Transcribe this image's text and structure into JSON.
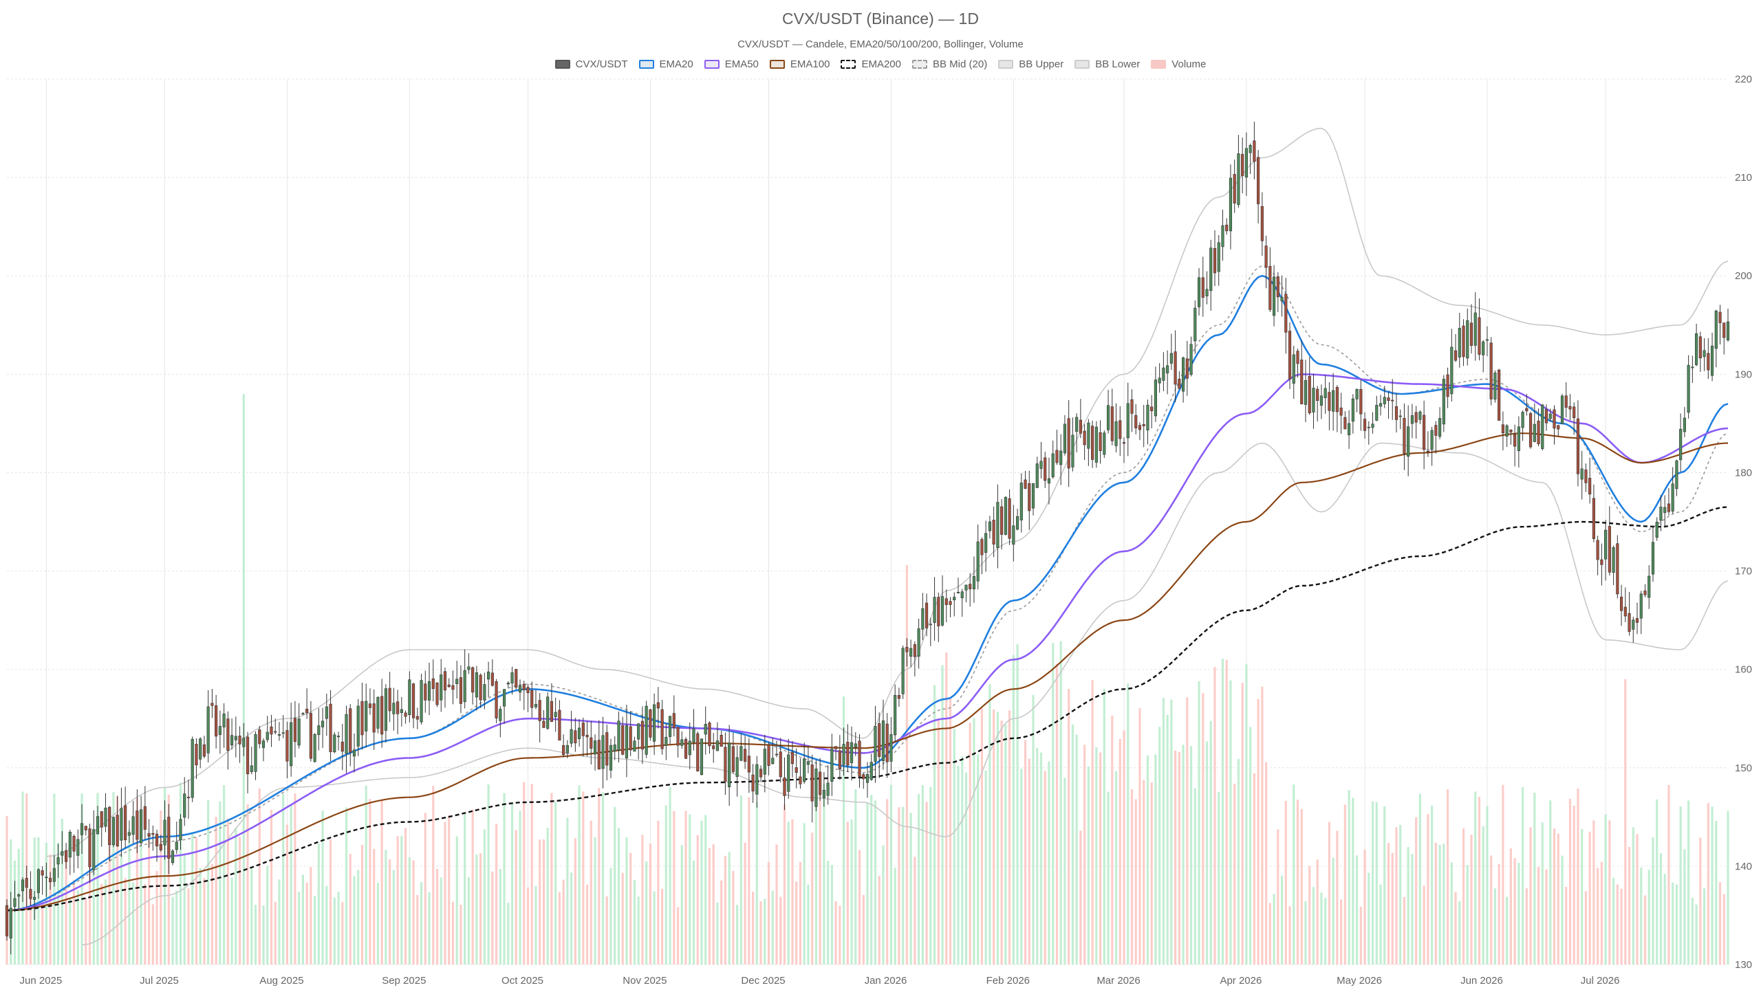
{
  "title": "CVX/USDT (Binance) — 1D",
  "subtitle": "CVX/USDT — Candele, EMA20/50/100/200, Bollinger, Volume",
  "legend": [
    {
      "label": "CVX/USDT",
      "fill": "#666666",
      "stroke": "#555555",
      "dash": false
    },
    {
      "label": "EMA20",
      "fill": "#dfe7ef",
      "stroke": "#1f7fe0",
      "dash": false
    },
    {
      "label": "EMA50",
      "fill": "#ece8f5",
      "stroke": "#8b5cf6",
      "dash": false
    },
    {
      "label": "EMA100",
      "fill": "#ede6df",
      "stroke": "#8b4513",
      "dash": false
    },
    {
      "label": "EMA200",
      "fill": "#ffffff",
      "stroke": "#111111",
      "dash": true
    },
    {
      "label": "BB Mid (20)",
      "fill": "#eeeeee",
      "stroke": "#999999",
      "dash": true
    },
    {
      "label": "BB Upper",
      "fill": "#e6e6e6",
      "stroke": "#cccccc",
      "dash": false
    },
    {
      "label": "BB Lower",
      "fill": "#e6e6e6",
      "stroke": "#cccccc",
      "dash": false
    },
    {
      "label": "Volume",
      "fill": "#f8c8c4",
      "stroke": "#f8c8c4",
      "dash": false
    }
  ],
  "colors": {
    "up": "#4f8a5b",
    "down": "#a5513f",
    "ema20": "#1f7fe0",
    "ema50": "#8b5cf6",
    "ema100": "#8b4513",
    "ema200": "#111111",
    "bb_mid": "#999999",
    "bb_band": "#c8c8c8",
    "vol_up": "#b8ebcb",
    "vol_down": "#fcc4c0",
    "grid": "#e6e6e6"
  },
  "chart_data": {
    "type": "candlestick",
    "pair": "CVX/USDT",
    "exchange": "Binance",
    "timeframe": "1D",
    "x_range": [
      "2025-05-22",
      "2026-08-01"
    ],
    "ylim": [
      130,
      220
    ],
    "y_ticks": [
      130,
      140,
      150,
      160,
      170,
      180,
      190,
      200,
      210,
      220
    ],
    "y_axis_side": "right",
    "grid": true,
    "legend_position": "top-center",
    "x_ticks": [
      {
        "label": "Jun 2025",
        "date": "2025-06-01"
      },
      {
        "label": "Jul 2025",
        "date": "2025-07-01"
      },
      {
        "label": "Aug 2025",
        "date": "2025-08-01"
      },
      {
        "label": "Sep 2025",
        "date": "2025-09-01"
      },
      {
        "label": "Oct 2025",
        "date": "2025-10-01"
      },
      {
        "label": "Nov 2025",
        "date": "2025-11-01"
      },
      {
        "label": "Dec 2025",
        "date": "2025-12-01"
      },
      {
        "label": "Jan 2026",
        "date": "2026-01-01"
      },
      {
        "label": "Feb 2026",
        "date": "2026-02-01"
      },
      {
        "label": "Mar 2026",
        "date": "2026-03-01"
      },
      {
        "label": "Apr 2026",
        "date": "2026-04-01"
      },
      {
        "label": "May 2026",
        "date": "2026-05-01"
      },
      {
        "label": "Jun 2026",
        "date": "2026-06-01"
      },
      {
        "label": "Jul 2026",
        "date": "2026-07-01"
      }
    ],
    "close_anchors": [
      {
        "date": "2025-05-22",
        "close": 135.5
      },
      {
        "date": "2025-06-08",
        "close": 142
      },
      {
        "date": "2025-06-20",
        "close": 144
      },
      {
        "date": "2025-07-01",
        "close": 143
      },
      {
        "date": "2025-07-12",
        "close": 154
      },
      {
        "date": "2025-07-22",
        "close": 151
      },
      {
        "date": "2025-08-01",
        "close": 153
      },
      {
        "date": "2025-08-15",
        "close": 154
      },
      {
        "date": "2025-09-01",
        "close": 157
      },
      {
        "date": "2025-09-15",
        "close": 158
      },
      {
        "date": "2025-10-01",
        "close": 157
      },
      {
        "date": "2025-10-15",
        "close": 152
      },
      {
        "date": "2025-11-01",
        "close": 154
      },
      {
        "date": "2025-11-15",
        "close": 152
      },
      {
        "date": "2025-11-25",
        "close": 150
      },
      {
        "date": "2025-12-10",
        "close": 149
      },
      {
        "date": "2025-12-20",
        "close": 150
      },
      {
        "date": "2025-12-31",
        "close": 153
      },
      {
        "date": "2026-01-05",
        "close": 163
      },
      {
        "date": "2026-01-15",
        "close": 166
      },
      {
        "date": "2026-02-01",
        "close": 176
      },
      {
        "date": "2026-02-15",
        "close": 183
      },
      {
        "date": "2026-03-01",
        "close": 185
      },
      {
        "date": "2026-03-15",
        "close": 190
      },
      {
        "date": "2026-03-22",
        "close": 200
      },
      {
        "date": "2026-04-01",
        "close": 212
      },
      {
        "date": "2026-04-08",
        "close": 198
      },
      {
        "date": "2026-04-15",
        "close": 188
      },
      {
        "date": "2026-05-01",
        "close": 186
      },
      {
        "date": "2026-05-15",
        "close": 184
      },
      {
        "date": "2026-05-28",
        "close": 194
      },
      {
        "date": "2026-06-08",
        "close": 184
      },
      {
        "date": "2026-06-20",
        "close": 186
      },
      {
        "date": "2026-07-01",
        "close": 172
      },
      {
        "date": "2026-07-08",
        "close": 166
      },
      {
        "date": "2026-07-15",
        "close": 176
      },
      {
        "date": "2026-07-25",
        "close": 192
      },
      {
        "date": "2026-08-01",
        "close": 196
      }
    ],
    "series": [
      {
        "name": "EMA20",
        "points": [
          [
            "2025-05-22",
            135.5
          ],
          [
            "2025-07-01",
            143
          ],
          [
            "2025-09-01",
            153
          ],
          [
            "2025-10-01",
            158
          ],
          [
            "2025-11-15",
            154
          ],
          [
            "2025-12-25",
            150
          ],
          [
            "2026-01-15",
            157
          ],
          [
            "2026-02-01",
            167
          ],
          [
            "2026-03-01",
            179
          ],
          [
            "2026-03-25",
            194
          ],
          [
            "2026-04-05",
            200
          ],
          [
            "2026-04-20",
            191
          ],
          [
            "2026-05-10",
            188
          ],
          [
            "2026-06-01",
            189
          ],
          [
            "2026-06-20",
            185
          ],
          [
            "2026-07-10",
            175
          ],
          [
            "2026-07-20",
            180
          ],
          [
            "2026-08-01",
            187
          ]
        ]
      },
      {
        "name": "EMA50",
        "points": [
          [
            "2025-05-22",
            135.5
          ],
          [
            "2025-07-01",
            141
          ],
          [
            "2025-09-01",
            151
          ],
          [
            "2025-10-01",
            155
          ],
          [
            "2025-11-15",
            154
          ],
          [
            "2025-12-25",
            151.5
          ],
          [
            "2026-01-15",
            155
          ],
          [
            "2026-02-01",
            161
          ],
          [
            "2026-03-01",
            172
          ],
          [
            "2026-04-01",
            186
          ],
          [
            "2026-04-15",
            190
          ],
          [
            "2026-05-15",
            189
          ],
          [
            "2026-06-05",
            188.5
          ],
          [
            "2026-06-25",
            185
          ],
          [
            "2026-07-10",
            181
          ],
          [
            "2026-08-01",
            184.5
          ]
        ]
      },
      {
        "name": "EMA100",
        "points": [
          [
            "2025-05-22",
            135.5
          ],
          [
            "2025-07-01",
            139
          ],
          [
            "2025-09-01",
            147
          ],
          [
            "2025-10-01",
            151
          ],
          [
            "2025-11-15",
            152.5
          ],
          [
            "2025-12-25",
            152
          ],
          [
            "2026-01-15",
            154
          ],
          [
            "2026-02-01",
            158
          ],
          [
            "2026-03-01",
            165
          ],
          [
            "2026-04-01",
            175
          ],
          [
            "2026-04-15",
            179
          ],
          [
            "2026-05-15",
            182
          ],
          [
            "2026-06-10",
            184
          ],
          [
            "2026-06-25",
            183.5
          ],
          [
            "2026-07-10",
            181
          ],
          [
            "2026-08-01",
            183
          ]
        ]
      },
      {
        "name": "EMA200",
        "points": [
          [
            "2025-05-22",
            135.5
          ],
          [
            "2025-07-01",
            138
          ],
          [
            "2025-09-01",
            144.5
          ],
          [
            "2025-10-01",
            146.5
          ],
          [
            "2025-11-15",
            148.5
          ],
          [
            "2025-12-25",
            149
          ],
          [
            "2026-01-15",
            150.5
          ],
          [
            "2026-02-01",
            153
          ],
          [
            "2026-03-01",
            158
          ],
          [
            "2026-04-01",
            166
          ],
          [
            "2026-04-15",
            168.5
          ],
          [
            "2026-05-15",
            171.5
          ],
          [
            "2026-06-10",
            174.5
          ],
          [
            "2026-06-25",
            175
          ],
          [
            "2026-07-15",
            174.5
          ],
          [
            "2026-08-01",
            176.5
          ]
        ]
      },
      {
        "name": "BB Mid (20)",
        "points": [
          [
            "2025-05-22",
            135.5
          ],
          [
            "2025-07-01",
            142.5
          ],
          [
            "2025-09-01",
            153
          ],
          [
            "2025-10-01",
            158.5
          ],
          [
            "2025-11-15",
            154
          ],
          [
            "2025-12-25",
            149.5
          ],
          [
            "2026-01-15",
            156
          ],
          [
            "2026-02-01",
            166
          ],
          [
            "2026-03-01",
            180
          ],
          [
            "2026-03-25",
            195
          ],
          [
            "2026-04-05",
            201
          ],
          [
            "2026-04-20",
            193
          ],
          [
            "2026-05-10",
            188
          ],
          [
            "2026-06-01",
            189.5
          ],
          [
            "2026-06-20",
            185
          ],
          [
            "2026-07-10",
            174
          ],
          [
            "2026-07-20",
            176
          ],
          [
            "2026-08-01",
            184
          ]
        ]
      },
      {
        "name": "BB Upper",
        "points": [
          [
            "2025-06-01",
            141
          ],
          [
            "2025-07-01",
            148
          ],
          [
            "2025-08-01",
            155
          ],
          [
            "2025-09-01",
            162
          ],
          [
            "2025-10-01",
            162
          ],
          [
            "2025-10-20",
            160
          ],
          [
            "2025-11-15",
            158
          ],
          [
            "2025-12-10",
            156
          ],
          [
            "2025-12-25",
            153
          ],
          [
            "2026-01-05",
            160
          ],
          [
            "2026-01-15",
            168
          ],
          [
            "2026-02-01",
            173
          ],
          [
            "2026-03-01",
            190
          ],
          [
            "2026-03-25",
            208
          ],
          [
            "2026-04-05",
            212
          ],
          [
            "2026-04-20",
            215
          ],
          [
            "2026-05-05",
            200
          ],
          [
            "2026-05-25",
            197
          ],
          [
            "2026-06-15",
            195
          ],
          [
            "2026-07-01",
            194
          ],
          [
            "2026-07-20",
            195
          ],
          [
            "2026-08-01",
            201.5
          ]
        ]
      },
      {
        "name": "BB Lower",
        "points": [
          [
            "2025-06-10",
            132
          ],
          [
            "2025-07-01",
            137
          ],
          [
            "2025-08-01",
            148
          ],
          [
            "2025-09-01",
            149
          ],
          [
            "2025-10-01",
            152
          ],
          [
            "2025-10-20",
            151
          ],
          [
            "2025-11-15",
            150
          ],
          [
            "2025-12-10",
            147
          ],
          [
            "2025-12-25",
            146.5
          ],
          [
            "2026-01-05",
            144
          ],
          [
            "2026-01-15",
            143
          ],
          [
            "2026-02-01",
            155
          ],
          [
            "2026-03-01",
            167
          ],
          [
            "2026-03-25",
            180
          ],
          [
            "2026-04-05",
            183
          ],
          [
            "2026-04-20",
            176
          ],
          [
            "2026-05-05",
            183
          ],
          [
            "2026-05-25",
            182
          ],
          [
            "2026-06-15",
            179
          ],
          [
            "2026-07-01",
            163
          ],
          [
            "2026-07-20",
            162
          ],
          [
            "2026-08-01",
            169
          ]
        ]
      }
    ],
    "volume": {
      "scale": "relative",
      "peaks": [
        {
          "date": "2025-07-21",
          "value": 1.0
        },
        {
          "date": "2025-12-20",
          "value": 0.47
        },
        {
          "date": "2026-01-05",
          "value": 0.7
        },
        {
          "date": "2026-07-06",
          "value": 0.5
        }
      ]
    }
  }
}
